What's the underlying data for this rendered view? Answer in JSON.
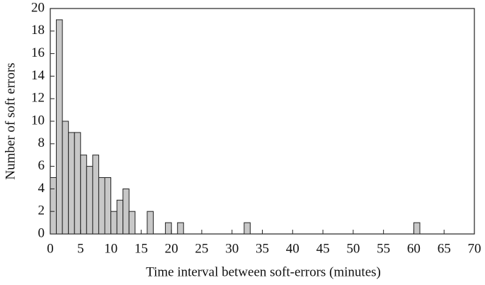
{
  "chart_data": {
    "type": "histogram",
    "xlabel": "Time interval between soft-errors (minutes)",
    "ylabel": "Number of soft errors",
    "bins": [
      0,
      1,
      2,
      3,
      4,
      5,
      6,
      7,
      8,
      9,
      10,
      11,
      12,
      13,
      14,
      15,
      16,
      17,
      18,
      19,
      20,
      21,
      22,
      23,
      24,
      25,
      26,
      27,
      28,
      29,
      30,
      31,
      32,
      33,
      34,
      35,
      36,
      37,
      38,
      39,
      40,
      41,
      42,
      43,
      44,
      45,
      46,
      47,
      48,
      49,
      50,
      51,
      52,
      53,
      54,
      55,
      56,
      57,
      58,
      59,
      60,
      61,
      62,
      63,
      64,
      65,
      66,
      67,
      68,
      69,
      70
    ],
    "counts": [
      5,
      19,
      10,
      9,
      9,
      7,
      6,
      7,
      5,
      5,
      2,
      3,
      4,
      2,
      0,
      0,
      2,
      0,
      0,
      1,
      0,
      1,
      0,
      0,
      0,
      0,
      0,
      0,
      0,
      0,
      0,
      0,
      1,
      0,
      0,
      0,
      0,
      0,
      0,
      0,
      0,
      0,
      0,
      0,
      0,
      0,
      0,
      0,
      0,
      0,
      0,
      0,
      0,
      0,
      0,
      0,
      0,
      0,
      0,
      0,
      1,
      0,
      0,
      0,
      0,
      0,
      0,
      0,
      0,
      0
    ],
    "color": "#c8c8c8",
    "xlim": [
      0,
      70
    ],
    "xticks": [
      0,
      5,
      10,
      15,
      20,
      25,
      30,
      35,
      40,
      45,
      50,
      55,
      60,
      65,
      70
    ],
    "ylim": [
      0,
      20
    ],
    "yticks": [
      0,
      2,
      4,
      6,
      8,
      10,
      12,
      14,
      16,
      18,
      20
    ]
  }
}
